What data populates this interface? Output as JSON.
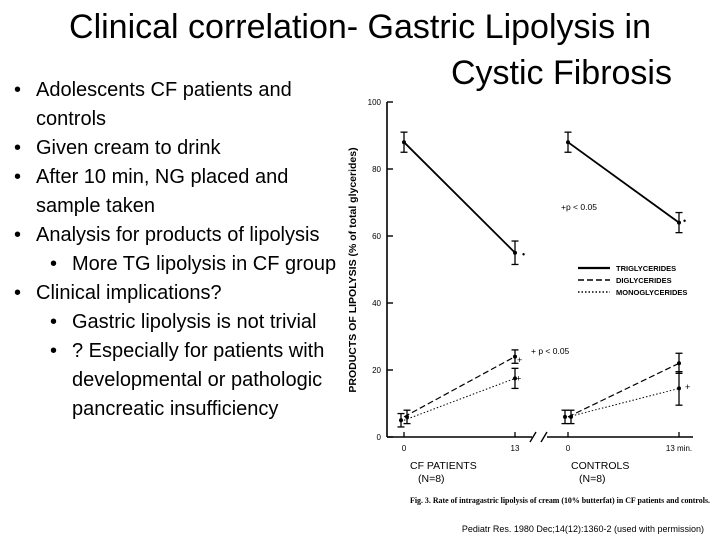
{
  "slide": {
    "title_line1": "Clinical correlation-  Gastric Lipolysis in",
    "title_line2": "Cystic Fibrosis",
    "bullets": [
      {
        "level": 1,
        "text": "Adolescents CF patients and controls"
      },
      {
        "level": 1,
        "text": "Given cream to drink"
      },
      {
        "level": 1,
        "text": "After 10 min, NG placed and sample taken"
      },
      {
        "level": 1,
        "text": "Analysis for products of lipolysis"
      },
      {
        "level": 2,
        "text": "More TG lipolysis in CF group"
      },
      {
        "level": 1,
        "text": "Clinical implications?"
      },
      {
        "level": 2,
        "text": "Gastric lipolysis is not trivial"
      },
      {
        "level": 2,
        "text": "? Especially for patients with developmental or pathologic pancreatic insufficiency"
      }
    ],
    "citation": "Pediatr Res. 1980 Dec;14(12):1360-2 (used with permission)"
  },
  "chart_data": {
    "type": "line",
    "ylabel": "PRODUCTS OF LIPOLYSIS (% of total glycerides)",
    "ylim": [
      0,
      100
    ],
    "yticks": [
      "0",
      "20",
      "40",
      "60",
      "80",
      "100"
    ],
    "x_ticks": [
      "0",
      "13",
      "0",
      "13 min."
    ],
    "groups": [
      {
        "label": "CF PATIENTS",
        "sublabel": "(N=8)",
        "x": [
          0,
          13
        ]
      },
      {
        "label": "CONTROLS",
        "sublabel": "(N=8)",
        "x": [
          0,
          13
        ]
      }
    ],
    "series": [
      {
        "name": "TRIGLYCERIDES",
        "style": "solid",
        "cf": [
          88,
          55
        ],
        "cf_err": [
          3,
          3.5
        ],
        "controls": [
          88,
          64
        ],
        "controls_err": [
          3,
          3
        ]
      },
      {
        "name": "DIGLYCERIDES",
        "style": "dashed",
        "cf": [
          6,
          24
        ],
        "cf_err": [
          2,
          2
        ],
        "controls": [
          6,
          22
        ],
        "controls_err": [
          2,
          3
        ]
      },
      {
        "name": "MONOGLYCERIDES",
        "style": "dotted",
        "cf": [
          5,
          17.5
        ],
        "cf_err": [
          2,
          3
        ],
        "controls": [
          6,
          14.5
        ],
        "controls_err": [
          2,
          5
        ]
      }
    ],
    "annotations": [
      "+p < 0.05",
      "+ p < 0.05"
    ],
    "caption": "Fig. 3.  Rate of intragastric lipolysis of cream (10% butterfat) in CF patients and controls."
  }
}
